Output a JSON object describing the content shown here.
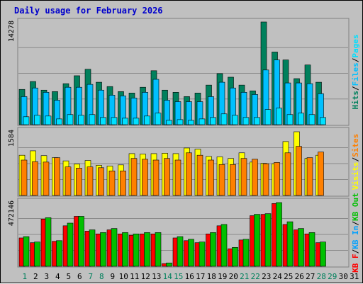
{
  "colors": {
    "background": "#c0c0c0",
    "panel": "#c0c0c0",
    "gridline": "#8a8a8a",
    "hits": "#00805c",
    "files": "#00c0ff",
    "pages": "#00e0ff",
    "visits": "#ffff00",
    "sites": "#ff8000",
    "kbf": "#ff0000",
    "kbin": "#00a0ff",
    "kbout": "#00c000",
    "title": "#0000cc",
    "weekend_label": "#00805c",
    "weekday_label": "#000000"
  },
  "chart_data": {
    "type": "bar",
    "title": "Daily usage for February 2026",
    "x": [
      "1",
      "2",
      "3",
      "4",
      "5",
      "6",
      "7",
      "8",
      "9",
      "10",
      "11",
      "12",
      "13",
      "14",
      "15",
      "16",
      "17",
      "18",
      "19",
      "20",
      "21",
      "22",
      "23",
      "24",
      "25",
      "26",
      "27",
      "28",
      "29",
      "30",
      "31"
    ],
    "weekend_days": [
      "1",
      "7",
      "8",
      "14",
      "15",
      "21",
      "22",
      "28",
      "29"
    ],
    "panels": [
      {
        "id": "hits",
        "max_label": "14278",
        "ymax": 14278,
        "legend": [
          {
            "text": "Hits",
            "color": "#00805c"
          },
          {
            "text": "/",
            "color": "#000000"
          },
          {
            "text": "Files",
            "color": "#00c0ff"
          },
          {
            "text": "/",
            "color": "#000000"
          },
          {
            "text": "Pages",
            "color": "#00e0ff"
          }
        ],
        "series": [
          {
            "name": "Hits",
            "color": "#00805c",
            "values": [
              4900,
              6000,
              4800,
              4600,
              5700,
              6800,
              7700,
              5900,
              5300,
              4600,
              4400,
              5200,
              7500,
              4800,
              4500,
              3900,
              4400,
              5500,
              7100,
              6600,
              5500,
              4700,
              14278,
              10100,
              9000,
              6400,
              8300,
              5900,
              null,
              null,
              null
            ]
          },
          {
            "name": "Files",
            "color": "#00c0ff",
            "values": [
              3900,
              5100,
              4500,
              3400,
              5200,
              5200,
              5600,
              4800,
              4100,
              4000,
              3700,
              4500,
              6300,
              3400,
              3200,
              3200,
              3200,
              3900,
              5900,
              5100,
              4500,
              4200,
              7600,
              9000,
              5800,
              5800,
              5700,
              4300,
              null,
              null,
              null
            ]
          },
          {
            "name": "Pages",
            "color": "#00e0ff",
            "values": [
              1100,
              1300,
              1200,
              800,
              1400,
              1300,
              1400,
              1000,
              1000,
              900,
              900,
              1200,
              1600,
              600,
              700,
              600,
              800,
              1000,
              1500,
              1300,
              1000,
              1000,
              2100,
              2300,
              1400,
              1600,
              1400,
              1000,
              null,
              null,
              null
            ]
          }
        ]
      },
      {
        "id": "visits",
        "max_label": "1584",
        "ymax": 1584,
        "legend": [
          {
            "text": "Visits",
            "color": "#ffff00"
          },
          {
            "text": "/",
            "color": "#000000"
          },
          {
            "text": "Sites",
            "color": "#ff8000"
          }
        ],
        "series": [
          {
            "name": "Visits",
            "color": "#ffff00",
            "values": [
              1000,
              1110,
              990,
              940,
              860,
              780,
              870,
              750,
              730,
              760,
              1040,
              1030,
              1040,
              1050,
              1040,
              1180,
              1150,
              970,
              960,
              920,
              1060,
              830,
              800,
              790,
              1340,
              1584,
              920,
              1000,
              null,
              null,
              null
            ]
          },
          {
            "name": "Sites",
            "color": "#ff8000",
            "values": [
              880,
              840,
              830,
              940,
              710,
              680,
              710,
              690,
              610,
              610,
              920,
              900,
              880,
              920,
              880,
              1060,
              1000,
              880,
              770,
              770,
              920,
              900,
              790,
              820,
              1060,
              1220,
              940,
              1080,
              null,
              null,
              null
            ]
          }
        ]
      },
      {
        "id": "kbytes",
        "max_label": "472146",
        "ymax": 472146,
        "legend": [
          {
            "text": "KB F",
            "color": "#ff0000"
          },
          {
            "text": "/",
            "color": "#000000"
          },
          {
            "text": "KB In",
            "color": "#00a0ff"
          },
          {
            "text": "/",
            "color": "#000000"
          },
          {
            "text": "KB Out",
            "color": "#00c000"
          }
        ],
        "series": [
          {
            "name": "KB F",
            "color": "#ff0000",
            "values": [
              210000,
              175000,
              350000,
              185000,
              300000,
              370000,
              260000,
              240000,
              270000,
              240000,
              230000,
              240000,
              240000,
              20000,
              210000,
              190000,
              175000,
              240000,
              300000,
              130000,
              195000,
              375000,
              385000,
              465000,
              310000,
              270000,
              240000,
              175000,
              null,
              null,
              null
            ]
          },
          {
            "name": "KB In",
            "color": "#00a0ff",
            "values": [
              null,
              null,
              null,
              null,
              null,
              null,
              null,
              null,
              null,
              null,
              null,
              null,
              null,
              null,
              null,
              null,
              null,
              null,
              null,
              null,
              null,
              null,
              null,
              null,
              null,
              null,
              null,
              null,
              null,
              null,
              null
            ]
          },
          {
            "name": "KB Out",
            "color": "#00c000",
            "values": [
              220000,
              180000,
              360000,
              190000,
              320000,
              370000,
              270000,
              250000,
              280000,
              250000,
              240000,
              250000,
              250000,
              25000,
              220000,
              200000,
              180000,
              250000,
              310000,
              140000,
              200000,
              385000,
              390000,
              472146,
              330000,
              280000,
              250000,
              180000,
              null,
              null,
              null
            ]
          }
        ]
      }
    ]
  }
}
